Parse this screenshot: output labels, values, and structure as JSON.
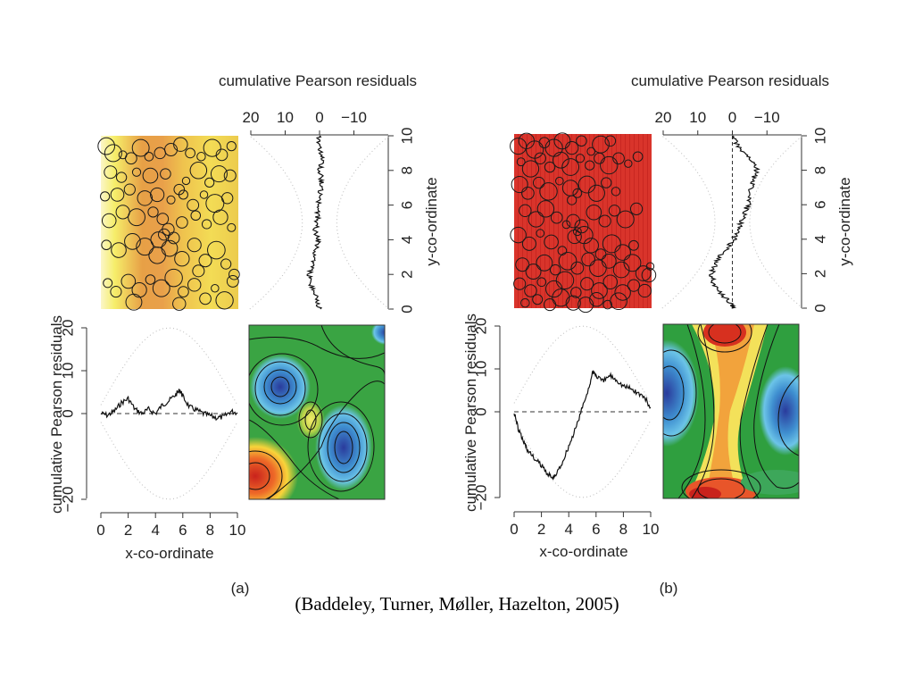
{
  "citation": "(Baddeley, Turner, Møller, Hazelton, 2005)",
  "chart_data": [
    {
      "type": "line",
      "panel_label": "(a)",
      "colors": {
        "surface_high": "#f6ef6a",
        "surface_mid": "#e79a3a",
        "surface_low": "#d63a2a",
        "marks": "#1a1a1a"
      },
      "map_points": [
        [
          0.4,
          9.4
        ],
        [
          0.9,
          9.0
        ],
        [
          1.6,
          8.9
        ],
        [
          2.2,
          8.7
        ],
        [
          2.9,
          9.3
        ],
        [
          3.5,
          8.8
        ],
        [
          4.3,
          9.0
        ],
        [
          5.1,
          9.2
        ],
        [
          5.8,
          9.5
        ],
        [
          6.5,
          9.0
        ],
        [
          7.3,
          8.8
        ],
        [
          8.1,
          9.3
        ],
        [
          8.8,
          8.9
        ],
        [
          9.5,
          9.4
        ],
        [
          0.7,
          7.9
        ],
        [
          1.5,
          7.6
        ],
        [
          2.6,
          7.9
        ],
        [
          3.6,
          7.7
        ],
        [
          4.7,
          7.8
        ],
        [
          5.7,
          6.9
        ],
        [
          6.2,
          7.4
        ],
        [
          7.1,
          8.0
        ],
        [
          7.9,
          7.3
        ],
        [
          8.6,
          7.8
        ],
        [
          9.4,
          7.7
        ],
        [
          0.3,
          6.5
        ],
        [
          1.2,
          6.6
        ],
        [
          2.1,
          6.9
        ],
        [
          3.2,
          6.4
        ],
        [
          4.1,
          6.6
        ],
        [
          5.1,
          6.3
        ],
        [
          6.0,
          6.6
        ],
        [
          6.7,
          6.0
        ],
        [
          7.5,
          6.6
        ],
        [
          8.3,
          6.1
        ],
        [
          9.2,
          6.4
        ],
        [
          0.6,
          5.1
        ],
        [
          1.6,
          5.6
        ],
        [
          2.6,
          5.3
        ],
        [
          3.8,
          5.6
        ],
        [
          4.5,
          5.2
        ],
        [
          4.9,
          4.6
        ],
        [
          4.6,
          4.3
        ],
        [
          4.2,
          4.0
        ],
        [
          5.3,
          4.1
        ],
        [
          5.9,
          5.0
        ],
        [
          6.9,
          5.4
        ],
        [
          7.7,
          4.9
        ],
        [
          8.7,
          5.3
        ],
        [
          9.5,
          4.7
        ],
        [
          0.4,
          3.7
        ],
        [
          1.3,
          3.4
        ],
        [
          2.3,
          3.9
        ],
        [
          3.2,
          3.6
        ],
        [
          4.1,
          3.1
        ],
        [
          5.0,
          3.5
        ],
        [
          5.9,
          2.9
        ],
        [
          6.8,
          3.7
        ],
        [
          7.6,
          2.8
        ],
        [
          8.4,
          3.4
        ],
        [
          9.1,
          2.6
        ],
        [
          9.7,
          2.0
        ],
        [
          0.5,
          1.5
        ],
        [
          1.1,
          1.0
        ],
        [
          2.0,
          1.6
        ],
        [
          2.8,
          1.1
        ],
        [
          3.6,
          1.7
        ],
        [
          4.4,
          1.2
        ],
        [
          5.3,
          1.8
        ],
        [
          6.0,
          1.0
        ],
        [
          6.8,
          1.4
        ],
        [
          7.6,
          0.6
        ],
        [
          8.3,
          1.2
        ],
        [
          9.0,
          0.5
        ],
        [
          9.6,
          1.6
        ],
        [
          2.4,
          0.4
        ],
        [
          5.7,
          0.3
        ],
        [
          7.1,
          2.2
        ]
      ],
      "y_profile": {
        "title": "cumulative Pearson residuals",
        "ylabel": "y-co-ordinate",
        "x_ticks": [
          "20",
          "10",
          "0",
          "−10"
        ],
        "y_ticks": [
          "0",
          "2",
          "4",
          "6",
          "8",
          "10"
        ],
        "residual_range": [
          20,
          -20
        ],
        "ylim": [
          0,
          10
        ],
        "y": [
          0.0,
          0.5,
          1.0,
          1.5,
          2.0,
          2.5,
          3.0,
          3.5,
          4.0,
          4.5,
          5.0,
          5.5,
          6.0,
          6.5,
          7.0,
          7.5,
          8.0,
          8.5,
          9.0,
          9.5,
          10.0
        ],
        "residual": [
          0.0,
          0.8,
          1.6,
          2.6,
          2.9,
          2.1,
          1.8,
          1.0,
          0.3,
          1.2,
          0.8,
          0.5,
          0.6,
          -0.4,
          -0.2,
          -0.6,
          0.0,
          -0.8,
          -0.4,
          0.4,
          0.0
        ]
      },
      "x_profile": {
        "ylabel": "cumulative Pearson residuals",
        "xlabel": "x-co-ordinate",
        "x_ticks": [
          "0",
          "2",
          "4",
          "6",
          "8",
          "10"
        ],
        "y_ticks": [
          "20",
          "10",
          "0",
          "−20"
        ],
        "xlim": [
          0,
          10
        ],
        "ylim": [
          -20,
          20
        ],
        "x": [
          0.0,
          0.5,
          1.0,
          1.5,
          2.0,
          2.5,
          3.0,
          3.5,
          4.0,
          4.5,
          5.0,
          5.5,
          5.8,
          6.0,
          6.5,
          7.0,
          7.5,
          8.0,
          8.5,
          9.0,
          9.5,
          10.0
        ],
        "residual": [
          0.0,
          -0.4,
          0.6,
          2.5,
          3.5,
          1.0,
          0.0,
          1.0,
          0.0,
          2.0,
          3.0,
          4.5,
          5.5,
          4.0,
          1.5,
          0.8,
          0.0,
          -0.5,
          -1.0,
          -0.8,
          0.5,
          0.2
        ]
      },
      "smoothed_residual_colors": {
        "background": "#2f9f3f",
        "positive": "#d7301f",
        "negative": "#2c3ea0"
      }
    },
    {
      "type": "line",
      "panel_label": "(b)",
      "colors": {
        "surface_high": "#f0a040",
        "surface_mid": "#dd3a2e",
        "surface_low": "#cf2a22",
        "marks": "#1a1a1a"
      },
      "map_points": [
        [
          0.3,
          9.3
        ],
        [
          0.9,
          9.6
        ],
        [
          1.5,
          9.1
        ],
        [
          2.2,
          9.5
        ],
        [
          2.9,
          9.2
        ],
        [
          3.5,
          9.6
        ],
        [
          4.2,
          9.2
        ],
        [
          4.9,
          9.6
        ],
        [
          5.6,
          9.0
        ],
        [
          6.3,
          9.4
        ],
        [
          7.0,
          9.6
        ],
        [
          0.5,
          8.4
        ],
        [
          1.2,
          8.0
        ],
        [
          1.9,
          8.6
        ],
        [
          2.6,
          8.1
        ],
        [
          3.4,
          8.5
        ],
        [
          4.1,
          8.1
        ],
        [
          4.8,
          8.6
        ],
        [
          5.5,
          8.2
        ],
        [
          6.2,
          8.6
        ],
        [
          6.9,
          8.2
        ],
        [
          7.6,
          8.6
        ],
        [
          8.3,
          8.3
        ],
        [
          9.0,
          8.7
        ],
        [
          0.4,
          7.1
        ],
        [
          1.0,
          6.6
        ],
        [
          1.8,
          7.2
        ],
        [
          2.5,
          6.7
        ],
        [
          3.3,
          7.3
        ],
        [
          4.1,
          6.9
        ],
        [
          4.6,
          6.6
        ],
        [
          4.2,
          6.2
        ],
        [
          5.3,
          7.1
        ],
        [
          6.0,
          6.6
        ],
        [
          6.7,
          7.2
        ],
        [
          7.4,
          6.7
        ],
        [
          0.8,
          5.6
        ],
        [
          1.6,
          5.1
        ],
        [
          2.3,
          5.7
        ],
        [
          3.1,
          5.2
        ],
        [
          3.8,
          4.8
        ],
        [
          4.3,
          5.0
        ],
        [
          4.6,
          4.4
        ],
        [
          4.9,
          4.7
        ],
        [
          4.4,
          4.1
        ],
        [
          5.1,
          4.2
        ],
        [
          5.8,
          5.5
        ],
        [
          6.6,
          5.0
        ],
        [
          7.3,
          5.6
        ],
        [
          8.1,
          5.1
        ],
        [
          8.9,
          5.7
        ],
        [
          0.3,
          4.2
        ],
        [
          1.1,
          3.7
        ],
        [
          1.9,
          4.3
        ],
        [
          2.7,
          3.8
        ],
        [
          3.5,
          3.3
        ],
        [
          5.6,
          3.6
        ],
        [
          6.3,
          3.1
        ],
        [
          7.1,
          3.7
        ],
        [
          7.9,
          3.2
        ],
        [
          8.7,
          3.6
        ],
        [
          0.6,
          2.5
        ],
        [
          1.4,
          2.1
        ],
        [
          2.2,
          2.6
        ],
        [
          3.0,
          2.2
        ],
        [
          3.9,
          2.7
        ],
        [
          4.6,
          2.3
        ],
        [
          5.4,
          2.8
        ],
        [
          6.1,
          2.3
        ],
        [
          6.9,
          2.7
        ],
        [
          7.8,
          2.2
        ],
        [
          8.6,
          2.6
        ],
        [
          9.4,
          2.0
        ],
        [
          0.4,
          1.4
        ],
        [
          1.2,
          1.0
        ],
        [
          2.0,
          1.5
        ],
        [
          2.9,
          1.1
        ],
        [
          3.7,
          1.6
        ],
        [
          4.5,
          0.9
        ],
        [
          5.3,
          1.4
        ],
        [
          6.2,
          1.0
        ],
        [
          7.0,
          1.5
        ],
        [
          7.9,
          0.9
        ],
        [
          8.7,
          1.3
        ],
        [
          9.5,
          1.0
        ],
        [
          0.8,
          0.3
        ],
        [
          1.7,
          0.5
        ],
        [
          2.6,
          0.2
        ],
        [
          3.4,
          0.6
        ],
        [
          4.3,
          0.3
        ],
        [
          5.2,
          0.2
        ],
        [
          6.0,
          0.5
        ],
        [
          6.8,
          0.2
        ],
        [
          7.6,
          0.4
        ],
        [
          9.8,
          1.9
        ],
        [
          9.9,
          2.4
        ]
      ],
      "y_profile": {
        "title": "cumulative Pearson residuals",
        "ylabel": "y-co-ordinate",
        "x_ticks": [
          "20",
          "10",
          "0",
          "−10"
        ],
        "y_ticks": [
          "0",
          "2",
          "4",
          "6",
          "8",
          "10"
        ],
        "residual_range": [
          20,
          -20
        ],
        "ylim": [
          0,
          10
        ],
        "y": [
          0.0,
          0.3,
          0.6,
          1.0,
          1.5,
          2.0,
          2.5,
          3.0,
          3.5,
          4.0,
          4.5,
          5.0,
          5.5,
          6.0,
          6.5,
          7.0,
          7.5,
          8.0,
          8.5,
          9.0,
          9.5,
          10.0
        ],
        "residual": [
          0.0,
          0.5,
          2.0,
          4.0,
          5.5,
          6.0,
          5.0,
          3.5,
          1.5,
          -0.5,
          -1.5,
          -2.5,
          -3.5,
          -4.5,
          -5.0,
          -5.5,
          -6.0,
          -7.0,
          -6.0,
          -3.5,
          -1.5,
          0.0
        ]
      },
      "x_profile": {
        "ylabel": "cumulative Pearson residuals",
        "xlabel": "x-co-ordinate",
        "x_ticks": [
          "0",
          "2",
          "4",
          "6",
          "8",
          "10"
        ],
        "y_ticks": [
          "20",
          "10",
          "0",
          "−20"
        ],
        "xlim": [
          0,
          10
        ],
        "ylim": [
          -20,
          20
        ],
        "x": [
          0.0,
          0.3,
          0.7,
          1.0,
          1.5,
          2.0,
          2.5,
          2.8,
          3.0,
          3.5,
          4.0,
          4.5,
          5.0,
          5.5,
          5.8,
          6.0,
          6.5,
          7.0,
          7.5,
          8.0,
          8.5,
          9.0,
          9.5,
          10.0
        ],
        "residual": [
          0.0,
          -4.0,
          -7.0,
          -9.0,
          -11.0,
          -12.5,
          -14.5,
          -15.5,
          -15.0,
          -12.0,
          -8.0,
          -4.0,
          1.0,
          6.0,
          9.5,
          8.5,
          7.0,
          8.5,
          7.5,
          6.0,
          5.5,
          4.5,
          3.5,
          1.0
        ]
      },
      "smoothed_residual_colors": {
        "background": "#2f9f3f",
        "positive": "#d7301f",
        "negative": "#2c3ea0"
      }
    }
  ]
}
